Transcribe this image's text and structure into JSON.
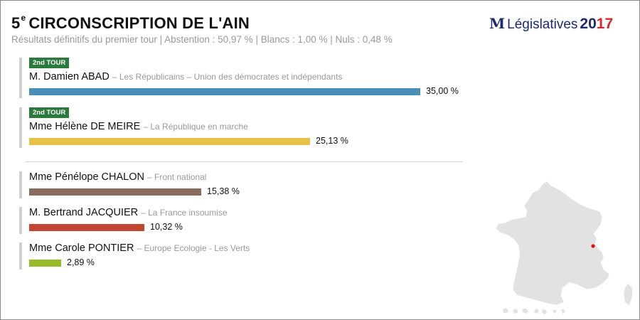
{
  "header": {
    "title_number": "5",
    "title_sup": "e",
    "title_rest": "CIRCONSCRIPTION DE L'AIN",
    "subtitle": "Résultats définitifs du premier tour | Abstention : 50,97 % | Blancs : 1,00 % | Nuls : 0,48 %"
  },
  "brand": {
    "glyph": "M",
    "label": "Législatives",
    "year_a": "20",
    "year_b": "17"
  },
  "colors": {
    "badge": "#2a7a3b",
    "accent": "#cfcfcf",
    "marker": "#e3101a",
    "map_fill": "#e2e2e2"
  },
  "chart_data": {
    "type": "bar",
    "orientation": "horizontal",
    "categories": [
      "M. Damien ABAD",
      "Mme Hélène DE MEIRE",
      "Mme Pénélope CHALON",
      "M. Bertrand JACQUIER",
      "Mme Carole PONTIER"
    ],
    "values": [
      35.0,
      25.13,
      15.38,
      10.32,
      2.89
    ],
    "xlim": [
      0,
      35.0
    ],
    "candidates": [
      {
        "name": "M. Damien ABAD",
        "party": "– Les Républicains – Union des démocrates et indépendants",
        "value": 35.0,
        "label": "35,00 %",
        "color": "#4a8db5",
        "badge": "2nd TOUR"
      },
      {
        "name": "Mme Hélène DE MEIRE",
        "party": "– La République en marche",
        "value": 25.13,
        "label": "25,13 %",
        "color": "#e8c14a",
        "badge": "2nd TOUR"
      },
      {
        "name": "Mme Pénélope CHALON",
        "party": "– Front national",
        "value": 15.38,
        "label": "15,38 %",
        "color": "#8a6c5e",
        "badge": ""
      },
      {
        "name": "M. Bertrand JACQUIER",
        "party": "– La France insoumise",
        "value": 10.32,
        "label": "10,32 %",
        "color": "#c44531",
        "badge": ""
      },
      {
        "name": "Mme Carole PONTIER",
        "party": "– Europe Ecologie - Les Verts",
        "value": 2.89,
        "label": "2,89 %",
        "color": "#98bc29",
        "badge": ""
      }
    ]
  }
}
